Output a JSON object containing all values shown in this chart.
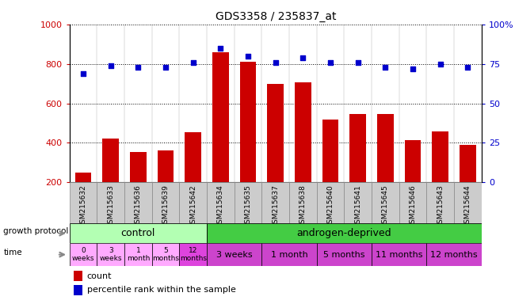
{
  "title": "GDS3358 / 235837_at",
  "samples": [
    "GSM215632",
    "GSM215633",
    "GSM215636",
    "GSM215639",
    "GSM215642",
    "GSM215634",
    "GSM215635",
    "GSM215637",
    "GSM215638",
    "GSM215640",
    "GSM215641",
    "GSM215645",
    "GSM215646",
    "GSM215643",
    "GSM215644"
  ],
  "counts": [
    250,
    420,
    355,
    360,
    455,
    860,
    810,
    700,
    705,
    520,
    545,
    545,
    415,
    460,
    390
  ],
  "percentiles": [
    69,
    74,
    73,
    73,
    76,
    85,
    80,
    76,
    79,
    76,
    76,
    73,
    72,
    75,
    73
  ],
  "ylim_left": [
    200,
    1000
  ],
  "ylim_right": [
    0,
    100
  ],
  "yticks_left": [
    200,
    400,
    600,
    800,
    1000
  ],
  "yticks_right": [
    0,
    25,
    50,
    75,
    100
  ],
  "bar_color": "#cc0000",
  "dot_color": "#0000cc",
  "sample_bg_color": "#cccccc",
  "control_color": "#b3ffb3",
  "androgen_color": "#44cc44",
  "time_ctrl_colors": [
    "#ffaaff",
    "#ffaaff",
    "#ffaaff",
    "#ffaaff",
    "#dd44dd"
  ],
  "time_and_color": "#cc44cc",
  "control_label": "control",
  "androgen_label": "androgen-deprived",
  "growth_protocol_label": "growth protocol",
  "time_label": "time",
  "legend_count": "count",
  "legend_percentile": "percentile rank within the sample",
  "control_time_labels": [
    "0\nweeks",
    "3\nweeks",
    "1\nmonth",
    "5\nmonths",
    "12\nmonths"
  ],
  "androgen_time_labels": [
    "3 weeks",
    "1 month",
    "5 months",
    "11 months",
    "12 months"
  ],
  "n_control": 5,
  "n_androgen": 10,
  "n_total": 15
}
